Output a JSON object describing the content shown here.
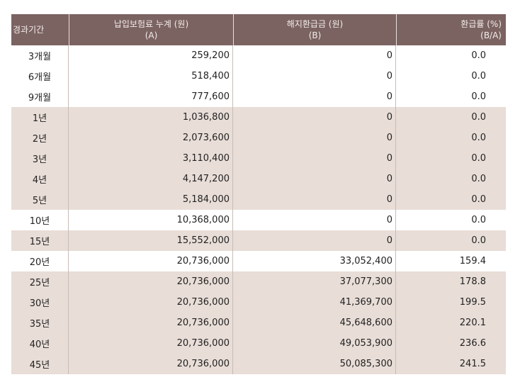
{
  "header": {
    "period": "경과기간",
    "premium_line1": "납입보험료 누계 (원)",
    "premium_line2": "(A)",
    "refund_line1": "해지환급금 (원)",
    "refund_line2": "(B)",
    "rate_line1": "환급률 (%)",
    "rate_line2": "(B/A)"
  },
  "groups": [
    {
      "shade": false,
      "rows": [
        {
          "period": "3개월",
          "premium": "259,200",
          "refund": "0",
          "rate": "0.0"
        },
        {
          "period": "6개월",
          "premium": "518,400",
          "refund": "0",
          "rate": "0.0"
        },
        {
          "period": "9개월",
          "premium": "777,600",
          "refund": "0",
          "rate": "0.0"
        }
      ]
    },
    {
      "shade": true,
      "rows": [
        {
          "period": "1년",
          "premium": "1,036,800",
          "refund": "0",
          "rate": "0.0"
        },
        {
          "period": "2년",
          "premium": "2,073,600",
          "refund": "0",
          "rate": "0.0"
        },
        {
          "period": "3년",
          "premium": "3,110,400",
          "refund": "0",
          "rate": "0.0"
        },
        {
          "period": "4년",
          "premium": "4,147,200",
          "refund": "0",
          "rate": "0.0"
        },
        {
          "period": "5년",
          "premium": "5,184,000",
          "refund": "0",
          "rate": "0.0"
        }
      ]
    },
    {
      "shade": false,
      "rows": [
        {
          "period": "10년",
          "premium": "10,368,000",
          "refund": "0",
          "rate": "0.0"
        }
      ]
    },
    {
      "shade": true,
      "rows": [
        {
          "period": "15년",
          "premium": "15,552,000",
          "refund": "0",
          "rate": "0.0"
        }
      ]
    },
    {
      "shade": false,
      "rows": [
        {
          "period": "20년",
          "premium": "20,736,000",
          "refund": "33,052,400",
          "rate": "159.4"
        }
      ]
    },
    {
      "shade": true,
      "rows": [
        {
          "period": "25년",
          "premium": "20,736,000",
          "refund": "37,077,300",
          "rate": "178.8"
        },
        {
          "period": "30년",
          "premium": "20,736,000",
          "refund": "41,369,700",
          "rate": "199.5"
        },
        {
          "period": "35년",
          "premium": "20,736,000",
          "refund": "45,648,600",
          "rate": "220.1"
        },
        {
          "period": "40년",
          "premium": "20,736,000",
          "refund": "49,053,900",
          "rate": "236.6"
        },
        {
          "period": "45년",
          "premium": "20,736,000",
          "refund": "50,085,300",
          "rate": "241.5"
        }
      ]
    }
  ],
  "colors": {
    "header_bg": "#7b6361",
    "shade_bg": "#e8ddd7"
  }
}
